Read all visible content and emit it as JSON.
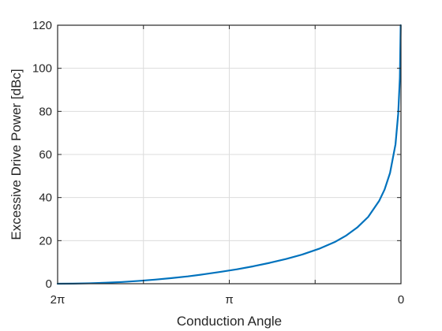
{
  "chart_data": {
    "type": "line",
    "xlabel": "Conduction Angle",
    "ylabel": "Excessive Drive Power [dBc]",
    "x_reversed": true,
    "xlim": [
      0,
      6.283185307
    ],
    "ylim": [
      0,
      120
    ],
    "grid": true,
    "x_ticks": [
      {
        "value": 6.283185307,
        "label": "2π"
      },
      {
        "value": 3.141592654,
        "label": "π"
      },
      {
        "value": 0,
        "label": "0"
      }
    ],
    "x_gridlines": [
      4.71238898,
      3.141592654,
      1.570796327
    ],
    "y_ticks": [
      0,
      20,
      40,
      60,
      80,
      100,
      120
    ],
    "series": [
      {
        "color": "#0072bd",
        "x": [
          6.2832,
          6.0,
          5.7,
          5.4,
          5.1,
          4.8,
          4.5,
          4.2,
          3.9,
          3.6,
          3.3,
          3.0,
          2.7,
          2.4,
          2.1,
          1.8,
          1.5,
          1.2,
          1.0,
          0.8,
          0.6,
          0.4,
          0.3,
          0.2,
          0.1,
          0.05,
          0.02,
          0.005
        ],
        "y": [
          0.0,
          0.05,
          0.2,
          0.45,
          0.8,
          1.3,
          1.9,
          2.6,
          3.4,
          4.4,
          5.5,
          6.7,
          8.1,
          9.7,
          11.5,
          13.6,
          16.2,
          19.5,
          22.4,
          26.1,
          31.0,
          38.4,
          43.7,
          51.4,
          64.7,
          79.0,
          95.5,
          120.0
        ]
      }
    ]
  }
}
